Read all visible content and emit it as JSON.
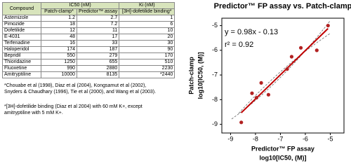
{
  "table": {
    "header": [
      "Compound",
      "IC50 (nM)",
      "Ki (nM)"
    ],
    "subheader": [
      "Patch-clamp*",
      "Predictor™ assay",
      "[3H]-dofetilide binding*"
    ],
    "rows": [
      [
        "Astemizole",
        "1.2",
        "2.7",
        "1"
      ],
      [
        "Pimozide",
        "18",
        "7.2",
        "6"
      ],
      [
        "Dofetilide",
        "12",
        "11",
        "10"
      ],
      [
        "E-4031",
        "48",
        "17",
        "20"
      ],
      [
        "Terfenadine",
        "16",
        "33",
        "30"
      ],
      [
        "Haloperidol",
        "174",
        "187",
        "90"
      ],
      [
        "Bepridil",
        "550",
        "279",
        "170"
      ],
      [
        "Thioridazine",
        "1250",
        "655",
        "510"
      ],
      [
        "Fluoxetine",
        "990",
        "2880",
        "2230"
      ],
      [
        "Amitryptiline",
        "10000",
        "8135",
        "*2440"
      ]
    ]
  },
  "footnotes": [
    "*Chouabe et al (1998), Diaz et al (2004), Kongsamut et al (2002), Snyders & Chaudhary (1996), Tie et al (2000), and Wang et al (2003).",
    "*[3H]-dofetilide binding (Diaz et al 2004) with 60 mM K+, except amitryptiline with 5 mM K+."
  ],
  "chart_data": {
    "type": "scatter",
    "title": "Predictor™ FP assay vs. Patch-clamp",
    "xlabel": [
      "Predictor™ FP assay",
      "log10[IC50, (M)]"
    ],
    "ylabel": [
      "Patch-clamp",
      "log10[IC50, (M)]"
    ],
    "annotations": [
      "y = 0.98x - 0.13",
      "r² = 0.92"
    ],
    "x": [
      -8.57,
      -8.14,
      -7.96,
      -7.77,
      -7.48,
      -6.73,
      -6.55,
      -6.18,
      -5.54,
      -5.09
    ],
    "series": [
      {
        "color": "#b22222",
        "values": [
          -8.92,
          -7.74,
          -7.92,
          -7.32,
          -7.8,
          -6.76,
          -6.26,
          -5.9,
          -6.0,
          -5.0
        ]
      }
    ],
    "trendline": {
      "slope": 0.98,
      "intercept": -0.13,
      "color": "#c00000"
    },
    "xlim": [
      -9.35,
      -4.45
    ],
    "ylim": [
      -9.35,
      -4.7
    ],
    "xticks": [
      -9,
      -8,
      -7,
      -6,
      -5
    ],
    "yticks": [
      -9,
      -8,
      -7,
      -6,
      -5
    ]
  }
}
